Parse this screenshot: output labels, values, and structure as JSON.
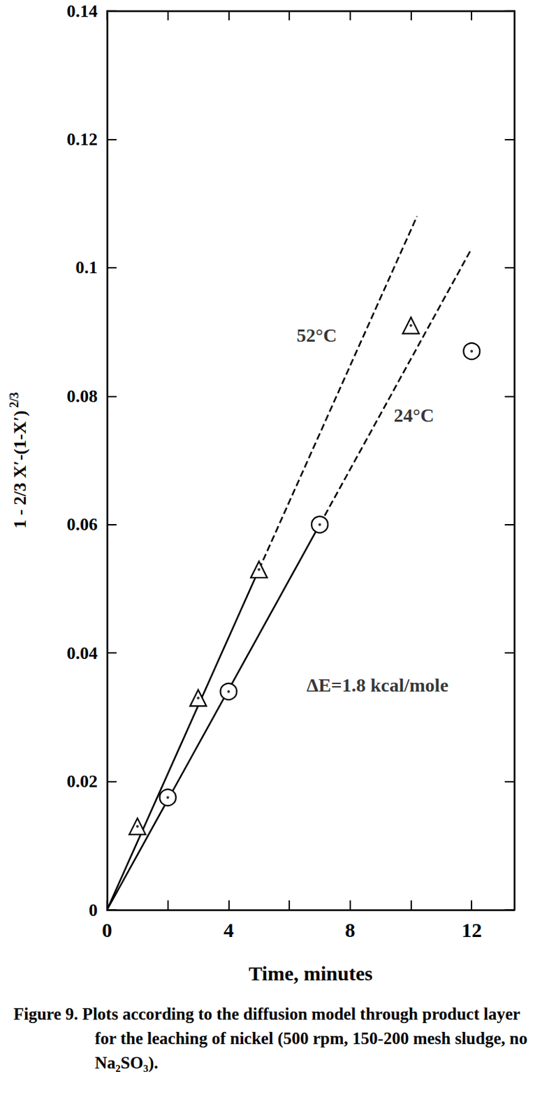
{
  "chart_data": {
    "type": "scatter",
    "caption": "Figure 9.   Plots according to the diffusion model through product layer for the leaching of nickel (500 rpm, 150-200 mesh sludge, no Na₂SO₃).",
    "xlabel": "Time, minutes",
    "ylabel": {
      "text": "1 - 2/3 X′-(1-X′)",
      "superscript": "2/3"
    },
    "xlim": [
      0,
      13.4
    ],
    "xticks": [
      0,
      4,
      8,
      12
    ],
    "xminor_ticks": [
      2,
      6,
      10
    ],
    "ylim": [
      0,
      0.14
    ],
    "yticks": [
      0,
      0.02,
      0.04,
      0.06,
      0.08,
      0.1,
      0.12,
      0.14
    ],
    "grid": false,
    "series": [
      {
        "type": "scatter",
        "marker": "triangle",
        "color": "#000000",
        "x": [
          1,
          3,
          5,
          10
        ],
        "values": [
          0.013,
          0.033,
          0.053,
          0.091
        ]
      },
      {
        "type": "scatter",
        "marker": "circle",
        "color": "#000000",
        "x": [
          2,
          4,
          7,
          12
        ],
        "values": [
          0.0175,
          0.034,
          0.06,
          0.087
        ]
      },
      {
        "type": "line",
        "line_style": "solid",
        "color": "#000000",
        "x": [
          0,
          5
        ],
        "values": [
          0,
          0.053
        ]
      },
      {
        "type": "line",
        "line_style": "dashed",
        "color": "#000000",
        "x": [
          5,
          10.2
        ],
        "values": [
          0.053,
          0.108
        ]
      },
      {
        "type": "line",
        "line_style": "solid",
        "color": "#000000",
        "x": [
          0,
          7
        ],
        "values": [
          0,
          0.06
        ]
      },
      {
        "type": "line",
        "line_style": "dashed",
        "color": "#000000",
        "x": [
          7,
          12
        ],
        "values": [
          0.06,
          0.103
        ]
      }
    ],
    "annotations": [
      {
        "text": "52°C",
        "x": 6.9,
        "y": 0.0895
      },
      {
        "text": "24°C",
        "x": 10.1,
        "y": 0.077
      },
      {
        "text": "ΔE=1.8 kcal/mole",
        "x": 8.9,
        "y": 0.035
      }
    ]
  }
}
